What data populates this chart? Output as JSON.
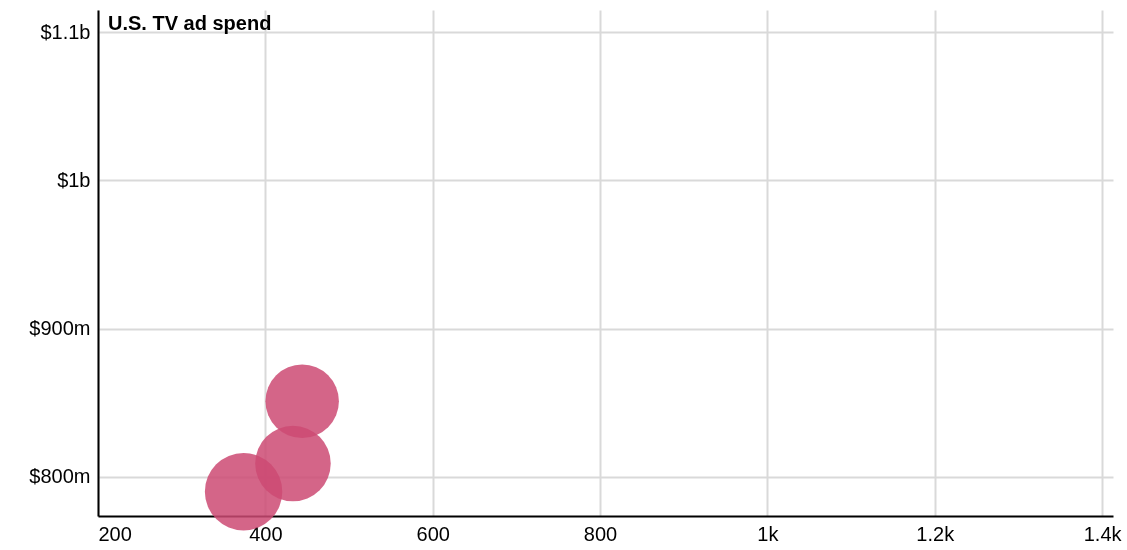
{
  "chart_data": {
    "type": "bubble",
    "title": "U.S. TV ad spend",
    "x": [
      374,
      433,
      444
    ],
    "values": [
      790000000,
      809000000,
      851000000
    ],
    "sizes": [
      1,
      0.95,
      0.9
    ],
    "color": "#cc4a73",
    "xlim": [
      200,
      1413
    ],
    "xticks": [
      200,
      400,
      600,
      800,
      {
        "value": 1000,
        "label": "1k"
      },
      {
        "value": 1200,
        "label": "1.2k"
      },
      {
        "value": 1400,
        "label": "1.4k"
      }
    ],
    "ylim": [
      773600000,
      1115000000
    ],
    "yticks": [
      {
        "value": 800000000,
        "label": "$800m"
      },
      {
        "value": 900000000,
        "label": "$900m"
      },
      {
        "value": 1000000000,
        "label": "$1b"
      },
      {
        "value": 1100000000,
        "label": "$1.1b"
      }
    ],
    "grid": true
  }
}
